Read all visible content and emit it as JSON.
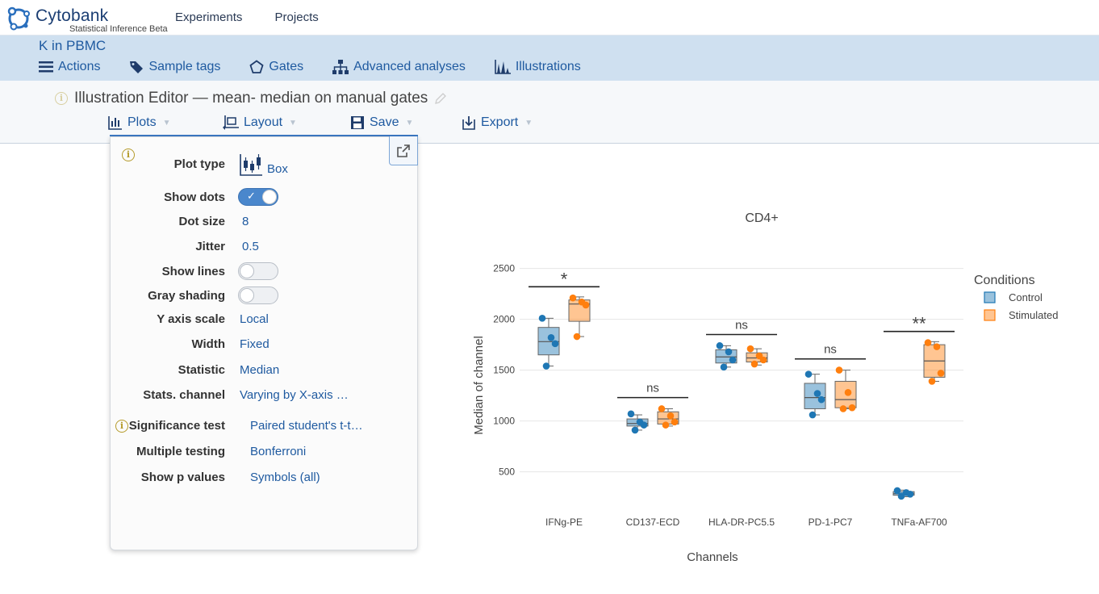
{
  "brand": {
    "name": "Cytobank",
    "subtitle": "Statistical Inference Beta"
  },
  "topnav": {
    "experiments": "Experiments",
    "projects": "Projects"
  },
  "project": {
    "title": "K in PBMC",
    "nav": {
      "actions": "Actions",
      "sample_tags": "Sample tags",
      "gates": "Gates",
      "advanced_analyses": "Advanced analyses",
      "illustrations": "Illustrations"
    }
  },
  "editor": {
    "title": "Illustration Editor — mean- median on manual gates",
    "menu": {
      "plots": "Plots",
      "layout": "Layout",
      "save": "Save",
      "export": "Export"
    }
  },
  "plots_panel": {
    "plot_type_label": "Plot type",
    "plot_type_value": "Box",
    "show_dots_label": "Show dots",
    "show_dots_on": true,
    "dot_size_label": "Dot size",
    "dot_size_value": "8",
    "jitter_label": "Jitter",
    "jitter_value": "0.5",
    "show_lines_label": "Show lines",
    "show_lines_on": false,
    "gray_shading_label": "Gray shading",
    "gray_shading_on": false,
    "y_axis_scale_label": "Y axis scale",
    "y_axis_scale_value": "Local",
    "width_label": "Width",
    "width_value": "Fixed",
    "statistic_label": "Statistic",
    "statistic_value": "Median",
    "stats_channel_label": "Stats. channel",
    "stats_channel_value": "Varying by X-axis …",
    "significance_test_label": "Significance test",
    "significance_test_value": "Paired student's t-t…",
    "multiple_testing_label": "Multiple testing",
    "multiple_testing_value": "Bonferroni",
    "show_p_values_label": "Show p values",
    "show_p_values_value": "Symbols (all)"
  },
  "colors": {
    "control": "#1f77b4",
    "stimulated": "#ff7f0e",
    "link": "#1f5aa0",
    "header_band": "#cfe0f0"
  },
  "chart_data": {
    "type": "box",
    "title": "CD4+",
    "xlabel": "Channels",
    "ylabel": "Median of channel",
    "ylim": [
      100,
      2600
    ],
    "yticks": [
      500,
      1000,
      1500,
      2000,
      2500
    ],
    "categories": [
      "IFNg-PE",
      "CD137-ECD",
      "HLA-DR-PC5.5",
      "PD-1-PC7",
      "TNFa-AF700"
    ],
    "legend_title": "Conditions",
    "legend_position": "top-right",
    "grid": true,
    "series": [
      {
        "name": "Control",
        "color": "#1f77b4",
        "boxes": [
          {
            "min": 1540,
            "q1": 1650,
            "median": 1780,
            "q3": 1920,
            "max": 2010
          },
          {
            "min": 910,
            "q1": 950,
            "median": 975,
            "q3": 1020,
            "max": 1060
          },
          {
            "min": 1530,
            "q1": 1570,
            "median": 1630,
            "q3": 1700,
            "max": 1740
          },
          {
            "min": 1060,
            "q1": 1120,
            "median": 1230,
            "q3": 1370,
            "max": 1460
          },
          {
            "min": 255,
            "q1": 270,
            "median": 285,
            "q3": 305,
            "max": 320
          }
        ],
        "points": [
          [
            2010,
            1820,
            1760,
            1540
          ],
          [
            1070,
            990,
            960,
            910
          ],
          [
            1740,
            1680,
            1600,
            1530
          ],
          [
            1460,
            1270,
            1210,
            1060
          ],
          [
            315,
            295,
            280,
            260
          ]
        ]
      },
      {
        "name": "Stimulated",
        "color": "#ff7f0e",
        "boxes": [
          {
            "min": 1830,
            "q1": 1980,
            "median": 2150,
            "q3": 2190,
            "max": 2220
          },
          {
            "min": 950,
            "q1": 970,
            "median": 1020,
            "q3": 1090,
            "max": 1120
          },
          {
            "min": 1550,
            "q1": 1580,
            "median": 1620,
            "q3": 1670,
            "max": 1710
          },
          {
            "min": 1120,
            "q1": 1130,
            "median": 1210,
            "q3": 1390,
            "max": 1500
          },
          {
            "min": 1390,
            "q1": 1430,
            "median": 1590,
            "q3": 1750,
            "max": 1780
          }
        ],
        "points": [
          [
            2210,
            2170,
            2140,
            1830
          ],
          [
            1120,
            1050,
            990,
            960
          ],
          [
            1710,
            1640,
            1600,
            1560
          ],
          [
            1500,
            1280,
            1130,
            1120
          ],
          [
            1770,
            1730,
            1470,
            1390
          ]
        ]
      }
    ],
    "significance": [
      {
        "category": "IFNg-PE",
        "label": "*",
        "y": 2320
      },
      {
        "category": "CD137-ECD",
        "label": "ns",
        "y": 1230
      },
      {
        "category": "HLA-DR-PC5.5",
        "label": "ns",
        "y": 1850
      },
      {
        "category": "PD-1-PC7",
        "label": "ns",
        "y": 1610
      },
      {
        "category": "TNFa-AF700",
        "label": "**",
        "y": 1880
      }
    ]
  }
}
